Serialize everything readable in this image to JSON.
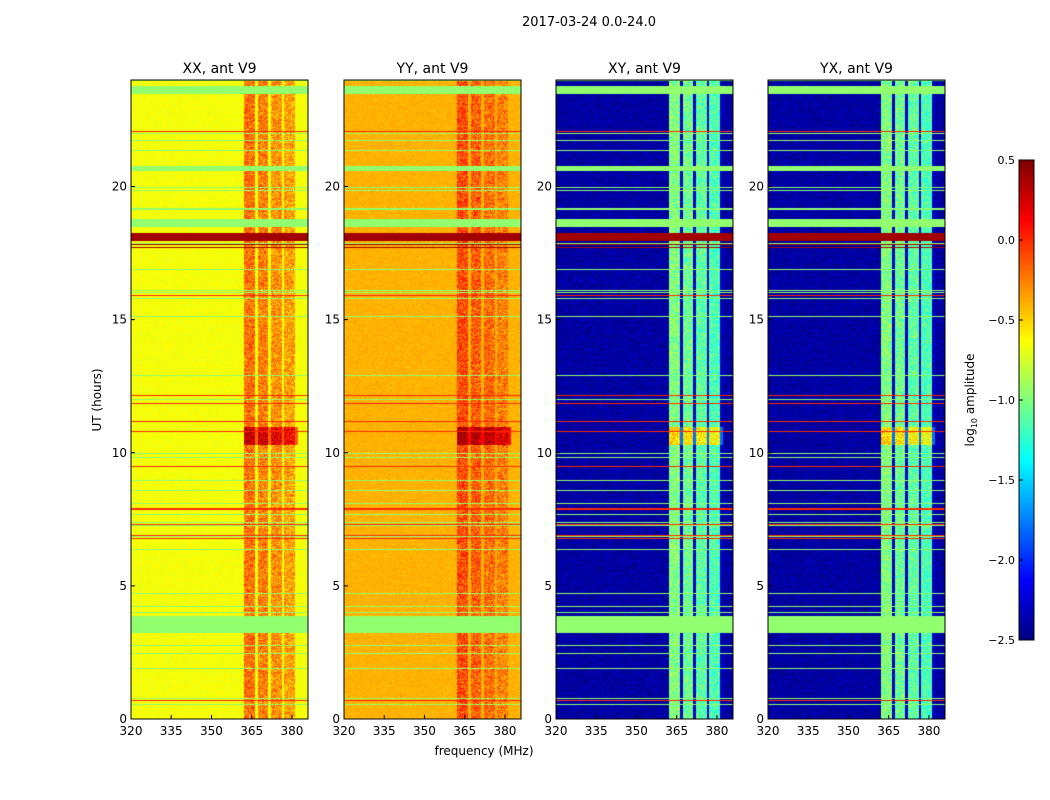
{
  "chart_data": {
    "type": "heatmap",
    "title": "2017-03-24 0.0-24.0",
    "xlabel": "frequency (MHz)",
    "ylabel": "UT (hours)",
    "xlim": [
      320,
      386
    ],
    "ylim": [
      0,
      24
    ],
    "xticks": [
      "320",
      "335",
      "350",
      "365",
      "380"
    ],
    "xtick_values": [
      320,
      335,
      350,
      365,
      380
    ],
    "yticks": [
      "0",
      "5",
      "10",
      "15",
      "20"
    ],
    "ytick_values": [
      0,
      5,
      10,
      15,
      20
    ],
    "panels": [
      {
        "title": "XX, ant V9",
        "base_level": -0.65,
        "band_level": -0.2
      },
      {
        "title": "YY, ant V9",
        "base_level": -0.4,
        "band_level": -0.1
      },
      {
        "title": "XY, ant V9",
        "base_level": -2.4,
        "band_level": -1.0
      },
      {
        "title": "YX, ant V9",
        "base_level": -2.4,
        "band_level": -1.0
      }
    ],
    "rfi_band_mhz": [
      362,
      382
    ],
    "flagged_hours": [
      [
        3.3,
        3.9
      ],
      [
        18.5,
        18.8
      ],
      [
        20.6,
        20.8
      ],
      [
        23.5,
        23.8
      ]
    ],
    "bright_hours": [
      [
        17.7,
        18.3
      ],
      [
        10.3,
        11.0
      ]
    ],
    "colorbar": {
      "label": "log10 amplitude",
      "label_main": "log",
      "label_sub": "10",
      "label_rest": " amplitude",
      "colormap": "jet",
      "range": [
        -2.5,
        0.5
      ],
      "ticks": [
        "0.5",
        "0.0",
        "−0.5",
        "−1.0",
        "−1.5",
        "−2.0",
        "−2.5"
      ],
      "tick_values": [
        0.5,
        0.0,
        -0.5,
        -1.0,
        -1.5,
        -2.0,
        -2.5
      ]
    }
  }
}
